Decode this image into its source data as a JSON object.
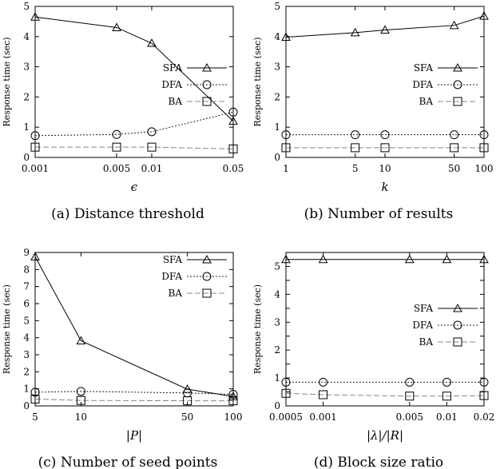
{
  "chart_data": [
    {
      "type": "line",
      "ylabel": "Response time (sec)",
      "xlabel": "ϵ",
      "caption": "(a) Distance threshold",
      "x_ticks": [
        "0.001",
        "0.005",
        "0.01",
        "0.05"
      ],
      "x_scale": "log",
      "x": [
        0.001,
        0.005,
        0.01,
        0.05
      ],
      "ylim": [
        0,
        5
      ],
      "y_ticks": [
        "0",
        "1",
        "2",
        "3",
        "4",
        "5"
      ],
      "legend": "right",
      "series": [
        {
          "name": "SFA",
          "marker": "triangle",
          "style": "solid",
          "values": [
            4.65,
            4.3,
            3.78,
            1.2
          ]
        },
        {
          "name": "DFA",
          "marker": "circle",
          "style": "dotted",
          "values": [
            0.72,
            0.76,
            0.85,
            1.5
          ]
        },
        {
          "name": "BA",
          "marker": "square",
          "style": "dashed",
          "values": [
            0.34,
            0.34,
            0.34,
            0.28
          ]
        }
      ]
    },
    {
      "type": "line",
      "ylabel": "Response time (sec)",
      "xlabel": "k",
      "caption": "(b) Number of results",
      "x_ticks": [
        "1",
        "5",
        "10",
        "50",
        "100"
      ],
      "x_scale": "log",
      "x": [
        1,
        5,
        10,
        50,
        100
      ],
      "ylim": [
        0,
        5
      ],
      "y_ticks": [
        "0",
        "1",
        "2",
        "3",
        "4",
        "5"
      ],
      "legend": "right",
      "series": [
        {
          "name": "SFA",
          "marker": "triangle",
          "style": "solid",
          "values": [
            3.98,
            4.13,
            4.22,
            4.37,
            4.68
          ]
        },
        {
          "name": "DFA",
          "marker": "circle",
          "style": "dotted",
          "values": [
            0.75,
            0.75,
            0.75,
            0.75,
            0.75
          ]
        },
        {
          "name": "BA",
          "marker": "square",
          "style": "dashed",
          "values": [
            0.32,
            0.32,
            0.32,
            0.32,
            0.32
          ]
        }
      ]
    },
    {
      "type": "line",
      "ylabel": "Response time (sec)",
      "xlabel": "|P|",
      "caption": "(c) Number of seed points",
      "x_ticks": [
        "5",
        "10",
        "50",
        "100"
      ],
      "x_scale": "log",
      "x": [
        5,
        10,
        50,
        100
      ],
      "ylim": [
        0,
        9
      ],
      "y_ticks": [
        "0",
        "1",
        "2",
        "3",
        "4",
        "5",
        "6",
        "7",
        "8",
        "9"
      ],
      "legend": "top-right",
      "series": [
        {
          "name": "SFA",
          "marker": "triangle",
          "style": "solid",
          "values": [
            8.75,
            3.82,
            0.98,
            0.55
          ]
        },
        {
          "name": "DFA",
          "marker": "circle",
          "style": "dotted",
          "values": [
            0.8,
            0.85,
            0.76,
            0.68
          ]
        },
        {
          "name": "BA",
          "marker": "square",
          "style": "dashed",
          "values": [
            0.4,
            0.32,
            0.3,
            0.3
          ]
        }
      ]
    },
    {
      "type": "line",
      "ylabel": "Response time (sec)",
      "xlabel": "|λ|/|R|",
      "caption": "(d) Block size ratio",
      "x_ticks": [
        "0.0005",
        "0.001",
        "0.005",
        "0.01",
        "0.02"
      ],
      "x_scale": "log",
      "x": [
        0.0005,
        0.001,
        0.005,
        0.01,
        0.02
      ],
      "ylim": [
        0,
        5.5
      ],
      "y_ticks": [
        "0",
        "0.5",
        "1",
        "1.5",
        "2",
        "2.5",
        "3",
        "3.5",
        "4",
        "4.5",
        "5"
      ],
      "y_tick_labels": [
        "0",
        "",
        "1",
        "",
        "2",
        "",
        "3",
        "",
        "4",
        "",
        "5"
      ],
      "legend": "right",
      "series": [
        {
          "name": "SFA",
          "marker": "triangle",
          "style": "solid",
          "values": [
            5.25,
            5.25,
            5.25,
            5.25,
            5.25
          ]
        },
        {
          "name": "DFA",
          "marker": "circle",
          "style": "dotted",
          "values": [
            0.85,
            0.85,
            0.85,
            0.85,
            0.85
          ]
        },
        {
          "name": "BA",
          "marker": "square",
          "style": "dashed",
          "values": [
            0.45,
            0.4,
            0.35,
            0.35,
            0.37
          ]
        }
      ]
    }
  ]
}
